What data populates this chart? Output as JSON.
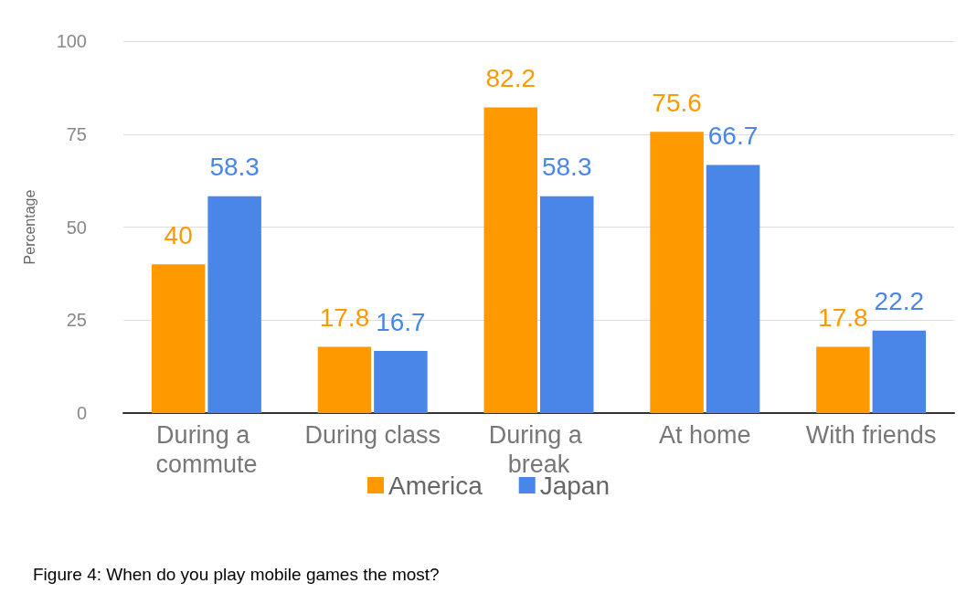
{
  "chart_data": {
    "type": "bar",
    "ylabel": "Percentage",
    "categories": [
      "During a commute",
      "During class",
      "During a break",
      "At home",
      "With friends"
    ],
    "series": [
      {
        "name": "America",
        "color": "#ff9900",
        "values": [
          40,
          17.8,
          82.2,
          75.6,
          17.8
        ]
      },
      {
        "name": "Japan",
        "color": "#4a86e8",
        "values": [
          58.3,
          16.7,
          58.3,
          66.7,
          22.2
        ]
      }
    ],
    "ylim": [
      0,
      100
    ],
    "yticks": [
      0,
      25,
      50,
      75,
      100
    ],
    "grid": "y",
    "legend": "bottom",
    "data_labels": true,
    "annotations": [
      "Figure 4: When do you play mobile games the most?"
    ]
  }
}
